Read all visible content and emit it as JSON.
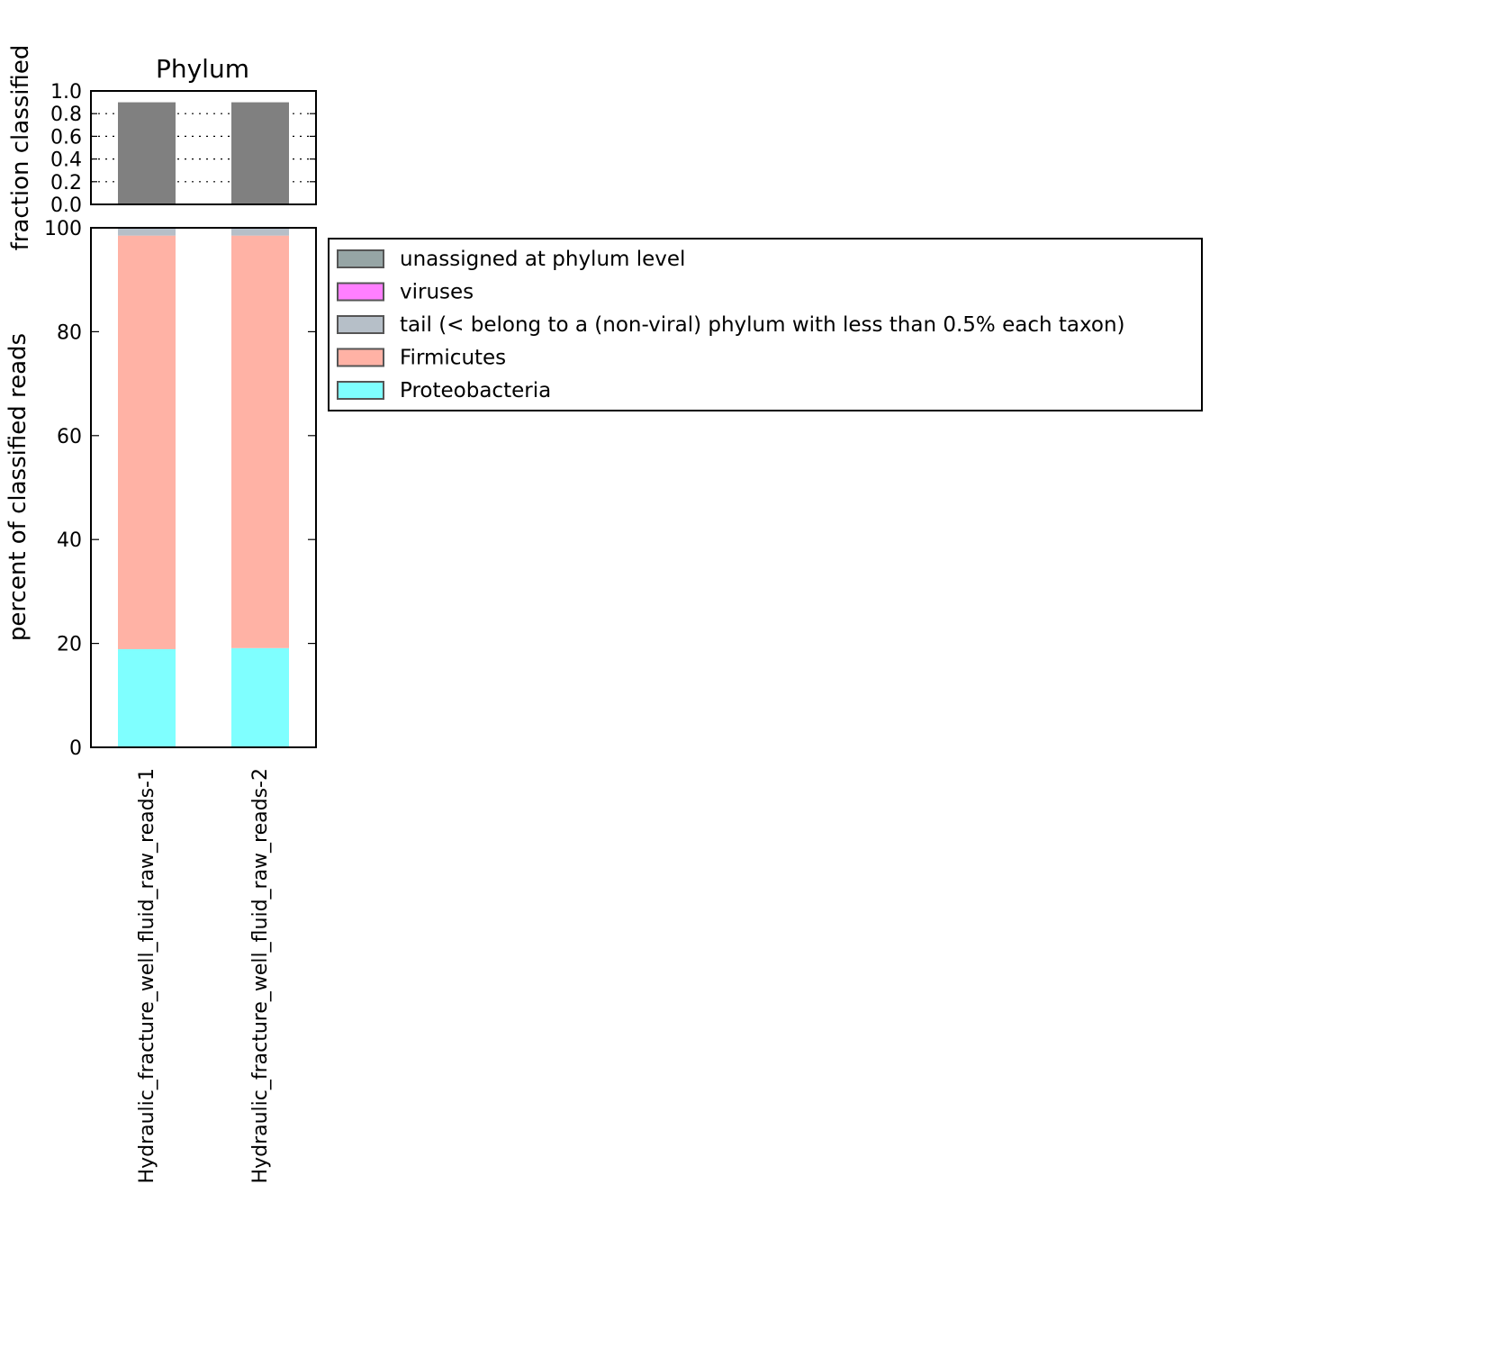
{
  "chart_data": [
    {
      "type": "bar",
      "title": "Phylum",
      "xlabel": "",
      "ylabel": "fraction classified",
      "ylim": [
        0,
        1.0
      ],
      "yticks": [
        "0.0",
        "0.2",
        "0.4",
        "0.6",
        "0.8",
        "1.0"
      ],
      "grid": "dotted horizontal",
      "categories": [
        "Hydraulic_fracture_well_fluid_raw_reads-1",
        "Hydraulic_fracture_well_fluid_raw_reads-2"
      ],
      "values": [
        0.9,
        0.9
      ],
      "color": "#808080"
    },
    {
      "type": "bar",
      "stacked": true,
      "xlabel": "",
      "ylabel": "percent of classified reads",
      "ylim": [
        0,
        100
      ],
      "yticks": [
        "0",
        "20",
        "40",
        "60",
        "80",
        "100"
      ],
      "categories": [
        "Hydraulic_fracture_well_fluid_raw_reads-1",
        "Hydraulic_fracture_well_fluid_raw_reads-2"
      ],
      "series": [
        {
          "name": "Proteobacteria",
          "color": "#7fffff",
          "values": [
            18.9,
            19.1
          ]
        },
        {
          "name": "Firmicutes",
          "color": "#ffb2a5",
          "values": [
            79.6,
            79.4
          ]
        },
        {
          "name": "tail (< belong to a (non-viral) phylum with less than 0.5% each taxon)",
          "color": "#b6bfc8",
          "values": [
            1.5,
            1.5
          ]
        },
        {
          "name": "viruses",
          "color": "#ff7fff",
          "values": [
            0,
            0
          ]
        },
        {
          "name": "unassigned at phylum level",
          "color": "#96a5a5",
          "values": [
            0,
            0
          ]
        }
      ],
      "legend": {
        "placement": "right",
        "entries": [
          "unassigned at phylum level",
          "viruses",
          "tail (< belong to a (non-viral) phylum with less than 0.5% each taxon)",
          "Firmicutes",
          "Proteobacteria"
        ]
      }
    }
  ]
}
